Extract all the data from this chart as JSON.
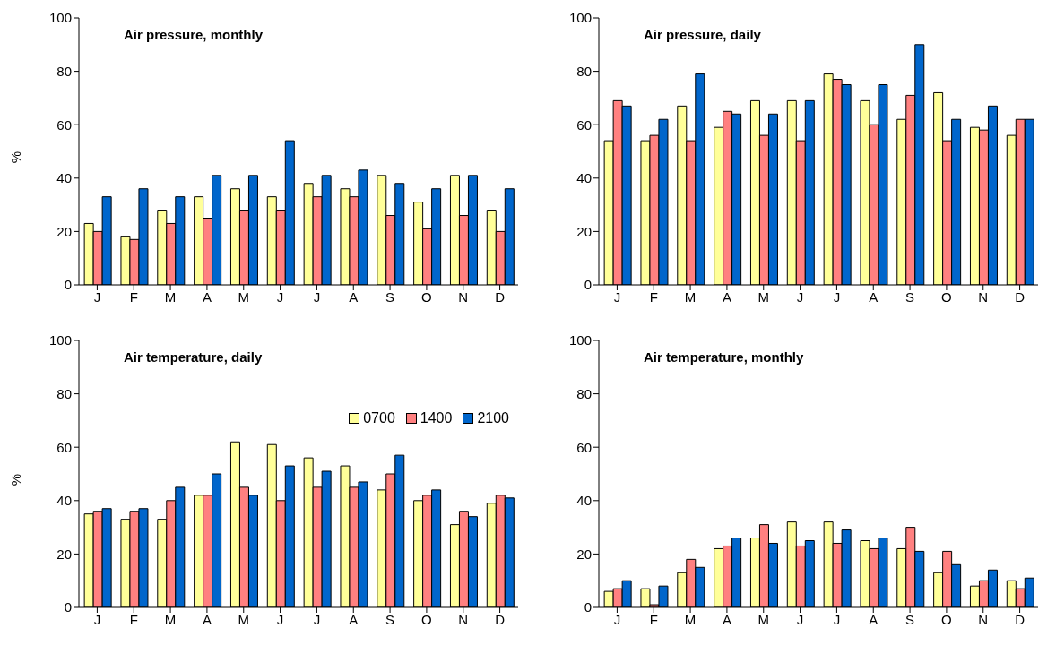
{
  "chart_data": [
    {
      "type": "bar",
      "title": "Air pressure, monthly",
      "ylabel": "%",
      "categories": [
        "J",
        "F",
        "M",
        "A",
        "M",
        "J",
        "J",
        "A",
        "S",
        "O",
        "N",
        "D"
      ],
      "ylim": [
        0,
        100
      ],
      "yticks": [
        0,
        20,
        40,
        60,
        80,
        100
      ],
      "legend": false,
      "series": [
        {
          "color": "#ffff99",
          "values": [
            23,
            18,
            28,
            33,
            36,
            33,
            38,
            36,
            41,
            31,
            41,
            28
          ]
        },
        {
          "color": "#ff8080",
          "values": [
            20,
            17,
            23,
            25,
            28,
            28,
            33,
            33,
            26,
            21,
            26,
            20
          ]
        },
        {
          "color": "#0066cc",
          "values": [
            33,
            36,
            33,
            41,
            41,
            54,
            41,
            43,
            38,
            36,
            41,
            36
          ]
        }
      ]
    },
    {
      "type": "bar",
      "title": "Air pressure, daily",
      "categories": [
        "J",
        "F",
        "M",
        "A",
        "M",
        "J",
        "J",
        "A",
        "S",
        "O",
        "N",
        "D"
      ],
      "ylim": [
        0,
        100
      ],
      "yticks": [
        0,
        20,
        40,
        60,
        80,
        100
      ],
      "legend": false,
      "series": [
        {
          "color": "#ffff99",
          "values": [
            54,
            54,
            67,
            59,
            69,
            69,
            79,
            69,
            62,
            72,
            59,
            56
          ]
        },
        {
          "color": "#ff8080",
          "values": [
            69,
            56,
            54,
            65,
            56,
            54,
            77,
            60,
            71,
            54,
            58,
            62
          ]
        },
        {
          "color": "#0066cc",
          "values": [
            67,
            62,
            79,
            64,
            64,
            69,
            75,
            75,
            90,
            62,
            67,
            62
          ]
        }
      ]
    },
    {
      "type": "bar",
      "title": "Air temperature, daily",
      "ylabel": "%",
      "categories": [
        "J",
        "F",
        "M",
        "A",
        "M",
        "J",
        "J",
        "A",
        "S",
        "O",
        "N",
        "D"
      ],
      "ylim": [
        0,
        100
      ],
      "yticks": [
        0,
        20,
        40,
        60,
        80,
        100
      ],
      "legend": "top right",
      "series": [
        {
          "name": "0700",
          "color": "#ffff99",
          "values": [
            35,
            33,
            33,
            42,
            62,
            61,
            56,
            53,
            44,
            40,
            31,
            39
          ]
        },
        {
          "name": "1400",
          "color": "#ff8080",
          "values": [
            36,
            36,
            40,
            42,
            45,
            40,
            45,
            45,
            50,
            42,
            36,
            42
          ]
        },
        {
          "name": "2100",
          "color": "#0066cc",
          "values": [
            37,
            37,
            45,
            50,
            42,
            53,
            51,
            47,
            57,
            44,
            34,
            41
          ]
        }
      ]
    },
    {
      "type": "bar",
      "title": "Air temperature, monthly",
      "categories": [
        "J",
        "F",
        "M",
        "A",
        "M",
        "J",
        "J",
        "A",
        "S",
        "O",
        "N",
        "D"
      ],
      "ylim": [
        0,
        100
      ],
      "yticks": [
        0,
        20,
        40,
        60,
        80,
        100
      ],
      "legend": false,
      "series": [
        {
          "color": "#ffff99",
          "values": [
            6,
            7,
            13,
            22,
            26,
            32,
            32,
            25,
            22,
            13,
            8,
            10
          ]
        },
        {
          "color": "#ff8080",
          "values": [
            7,
            1,
            18,
            23,
            31,
            23,
            24,
            22,
            30,
            21,
            10,
            7
          ]
        },
        {
          "color": "#0066cc",
          "values": [
            10,
            8,
            15,
            26,
            24,
            25,
            29,
            26,
            21,
            16,
            14,
            11
          ]
        }
      ]
    }
  ]
}
